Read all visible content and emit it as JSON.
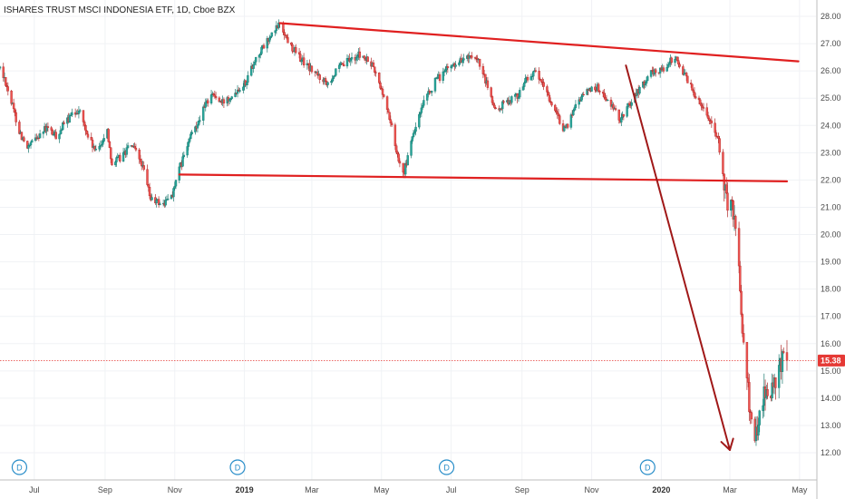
{
  "chart_data": {
    "type": "candlestick",
    "title": "ISHARES TRUST MSCI INDONESIA ETF, 1D, Cboe BZX",
    "ylim": [
      11.4,
      28.3
    ],
    "y_ticks": [
      "12.00",
      "13.00",
      "14.00",
      "15.00",
      "16.00",
      "17.00",
      "18.00",
      "19.00",
      "20.00",
      "21.00",
      "22.00",
      "23.00",
      "24.00",
      "25.00",
      "26.00",
      "27.00",
      "28.00"
    ],
    "x_range": [
      "2018-06-01",
      "2020-05-20"
    ],
    "x_ticks": [
      {
        "date": "2018-07-01",
        "label": "Jul",
        "bold": false
      },
      {
        "date": "2018-09-01",
        "label": "Sep",
        "bold": false
      },
      {
        "date": "2018-11-01",
        "label": "Nov",
        "bold": false
      },
      {
        "date": "2019-01-01",
        "label": "2019",
        "bold": true
      },
      {
        "date": "2019-03-01",
        "label": "Mar",
        "bold": false
      },
      {
        "date": "2019-05-01",
        "label": "May",
        "bold": false
      },
      {
        "date": "2019-07-01",
        "label": "Jul",
        "bold": false
      },
      {
        "date": "2019-09-01",
        "label": "Sep",
        "bold": false
      },
      {
        "date": "2019-11-01",
        "label": "Nov",
        "bold": false
      },
      {
        "date": "2020-01-01",
        "label": "2020",
        "bold": true
      },
      {
        "date": "2020-03-01",
        "label": "Mar",
        "bold": false
      },
      {
        "date": "2020-05-01",
        "label": "May",
        "bold": false
      }
    ],
    "last_price": {
      "label": "15.38",
      "value": 15.38,
      "color": "#e53935"
    },
    "dividend_markers": [
      {
        "date": "2018-06-18",
        "label": "D"
      },
      {
        "date": "2018-12-26",
        "label": "D"
      },
      {
        "date": "2019-06-27",
        "label": "D"
      },
      {
        "date": "2019-12-20",
        "label": "D"
      }
    ],
    "trendlines": [
      {
        "name": "upper-trendline",
        "from": [
          "2019-02-01",
          27.75
        ],
        "to": [
          "2020-04-30",
          26.35
        ],
        "color": "#e02020"
      },
      {
        "name": "lower-trendline",
        "from": [
          "2018-11-05",
          22.2
        ],
        "to": [
          "2020-04-20",
          21.95
        ],
        "color": "#e02020"
      }
    ],
    "arrow": {
      "from": [
        "2019-12-01",
        26.2
      ],
      "to": [
        "2020-03-01",
        12.1
      ],
      "color": "#a01818"
    },
    "path": [
      [
        "2018-06-01",
        26.1
      ],
      [
        "2018-06-06",
        25.6
      ],
      [
        "2018-06-12",
        24.7
      ],
      [
        "2018-06-18",
        23.8
      ],
      [
        "2018-06-25",
        23.1
      ],
      [
        "2018-07-03",
        23.6
      ],
      [
        "2018-07-12",
        23.9
      ],
      [
        "2018-07-20",
        23.6
      ],
      [
        "2018-07-30",
        24.2
      ],
      [
        "2018-08-09",
        24.6
      ],
      [
        "2018-08-16",
        23.7
      ],
      [
        "2018-08-24",
        23.0
      ],
      [
        "2018-09-03",
        23.8
      ],
      [
        "2018-09-07",
        22.6
      ],
      [
        "2018-09-14",
        22.8
      ],
      [
        "2018-09-24",
        23.3
      ],
      [
        "2018-10-03",
        22.6
      ],
      [
        "2018-10-11",
        21.3
      ],
      [
        "2018-10-22",
        21.1
      ],
      [
        "2018-10-30",
        21.5
      ],
      [
        "2018-11-06",
        22.5
      ],
      [
        "2018-11-15",
        23.6
      ],
      [
        "2018-11-23",
        24.3
      ],
      [
        "2018-12-03",
        25.2
      ],
      [
        "2018-12-12",
        24.8
      ],
      [
        "2018-12-20",
        25.1
      ],
      [
        "2019-01-02",
        25.6
      ],
      [
        "2019-01-10",
        26.4
      ],
      [
        "2019-01-18",
        26.9
      ],
      [
        "2019-01-25",
        27.3
      ],
      [
        "2019-02-01",
        27.75
      ],
      [
        "2019-02-08",
        27.1
      ],
      [
        "2019-02-18",
        26.5
      ],
      [
        "2019-02-27",
        26.1
      ],
      [
        "2019-03-07",
        25.8
      ],
      [
        "2019-03-15",
        25.6
      ],
      [
        "2019-03-25",
        26.1
      ],
      [
        "2019-04-03",
        26.4
      ],
      [
        "2019-04-12",
        26.6
      ],
      [
        "2019-04-23",
        26.2
      ],
      [
        "2019-05-01",
        25.3
      ],
      [
        "2019-05-08",
        24.3
      ],
      [
        "2019-05-15",
        22.9
      ],
      [
        "2019-05-21",
        22.3
      ],
      [
        "2019-05-29",
        23.7
      ],
      [
        "2019-06-07",
        24.8
      ],
      [
        "2019-06-17",
        25.6
      ],
      [
        "2019-06-26",
        26.0
      ],
      [
        "2019-07-05",
        26.3
      ],
      [
        "2019-07-15",
        26.5
      ],
      [
        "2019-07-25",
        26.3
      ],
      [
        "2019-08-02",
        25.4
      ],
      [
        "2019-08-09",
        24.5
      ],
      [
        "2019-08-19",
        24.9
      ],
      [
        "2019-08-28",
        25.1
      ],
      [
        "2019-09-06",
        25.8
      ],
      [
        "2019-09-13",
        25.9
      ],
      [
        "2019-09-23",
        25.2
      ],
      [
        "2019-10-02",
        24.3
      ],
      [
        "2019-10-09",
        23.8
      ],
      [
        "2019-10-18",
        24.8
      ],
      [
        "2019-10-28",
        25.3
      ],
      [
        "2019-11-06",
        25.4
      ],
      [
        "2019-11-15",
        24.9
      ],
      [
        "2019-11-26",
        24.2
      ],
      [
        "2019-12-04",
        24.8
      ],
      [
        "2019-12-12",
        25.3
      ],
      [
        "2019-12-23",
        25.9
      ],
      [
        "2020-01-03",
        26.1
      ],
      [
        "2020-01-13",
        26.5
      ],
      [
        "2020-01-20",
        26.0
      ],
      [
        "2020-01-28",
        25.3
      ],
      [
        "2020-02-05",
        24.8
      ],
      [
        "2020-02-12",
        24.3
      ],
      [
        "2020-02-20",
        23.4
      ],
      [
        "2020-02-27",
        21.2
      ],
      [
        "2020-03-04",
        20.8
      ],
      [
        "2020-03-09",
        18.8
      ],
      [
        "2020-03-12",
        16.7
      ],
      [
        "2020-03-16",
        15.1
      ],
      [
        "2020-03-19",
        13.2
      ],
      [
        "2020-03-23",
        12.2
      ],
      [
        "2020-03-26",
        13.4
      ],
      [
        "2020-03-31",
        14.3
      ],
      [
        "2020-04-06",
        14.1
      ],
      [
        "2020-04-13",
        15.0
      ],
      [
        "2020-04-17",
        15.8
      ],
      [
        "2020-04-20",
        15.38
      ]
    ]
  }
}
